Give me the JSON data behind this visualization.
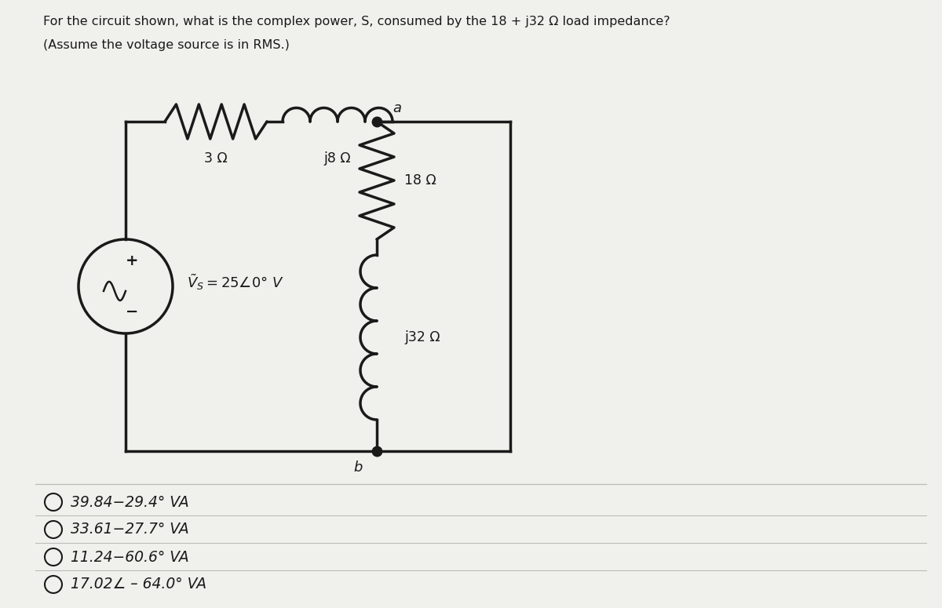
{
  "title_line1": "For the circuit shown, what is the complex power, S, consumed by the 18 + j32 Ω load impedance?",
  "title_line2": "(Assume the voltage source is in RMS.)",
  "bg_color": "#f0f0ec",
  "circuit_color": "#1a1a1a",
  "choices": [
    "39.84−29.4° VA",
    "33.61−27.7° VA",
    "11.24−60.6° VA",
    "17.02∠ – 64.0° VA"
  ],
  "resistor_label_3": "3 Ω",
  "inductor_label_j8": "j8 Ω",
  "resistor_label_18": "18 Ω",
  "inductor_label_j32": "j32 Ω",
  "node_a": "a",
  "node_b": "b",
  "vs_label_1": "$\\tilde{V}_s = 25 \\angle 0^\\circ$ V"
}
